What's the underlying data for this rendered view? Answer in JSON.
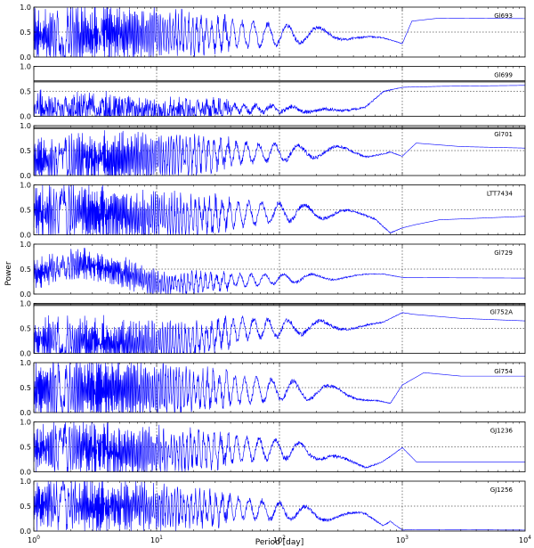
{
  "chart_data": {
    "type": "line",
    "xlabel": "Period [day]",
    "ylabel": "Power",
    "xscale": "log",
    "xlim": [
      1,
      10000
    ],
    "ylim": [
      0,
      1
    ],
    "grid": true,
    "line_color": "#0000ff",
    "threshold_color": "#555555",
    "x_tick_labels": [
      "10^0",
      "10^1",
      "10^2",
      "10^3",
      "10^4"
    ],
    "y_tick_labels": [
      "0.0",
      "0.5",
      "1.0"
    ],
    "panels": [
      {
        "name": "Gl693",
        "threshold": null,
        "control": [
          [
            1,
            0.45
          ],
          [
            10,
            0.45
          ],
          [
            30,
            0.45
          ],
          [
            60,
            0.45
          ],
          [
            100,
            0.45
          ],
          [
            200,
            0.45
          ],
          [
            400,
            0.45
          ],
          [
            700,
            0.35
          ],
          [
            1000,
            0.25
          ],
          [
            1200,
            0.72
          ],
          [
            2000,
            0.78
          ],
          [
            10000,
            0.77
          ]
        ],
        "noise": 0.5,
        "amp": 0.42
      },
      {
        "name": "Gl699",
        "threshold": 0.7,
        "control": [
          [
            1,
            0.2
          ],
          [
            3,
            0.15
          ],
          [
            10,
            0.1
          ],
          [
            30,
            0.15
          ],
          [
            100,
            0.15
          ],
          [
            200,
            0.12
          ],
          [
            300,
            0.1
          ],
          [
            500,
            0.2
          ],
          [
            700,
            0.5
          ],
          [
            1000,
            0.58
          ],
          [
            2000,
            0.6
          ],
          [
            10000,
            0.62
          ]
        ],
        "noise": 0.5,
        "amp": 0.12
      },
      {
        "name": "Gl701",
        "threshold": 0.95,
        "control": [
          [
            1,
            0.3
          ],
          [
            3,
            0.3
          ],
          [
            10,
            0.35
          ],
          [
            30,
            0.45
          ],
          [
            100,
            0.45
          ],
          [
            300,
            0.5
          ],
          [
            500,
            0.4
          ],
          [
            800,
            0.5
          ],
          [
            1000,
            0.4
          ],
          [
            1300,
            0.65
          ],
          [
            3000,
            0.58
          ],
          [
            10000,
            0.55
          ]
        ],
        "noise": 0.5,
        "amp": 0.35
      },
      {
        "name": "LTT7434",
        "threshold": null,
        "control": [
          [
            1,
            0.45
          ],
          [
            3,
            0.4
          ],
          [
            10,
            0.35
          ],
          [
            30,
            0.4
          ],
          [
            100,
            0.45
          ],
          [
            300,
            0.45
          ],
          [
            600,
            0.3
          ],
          [
            800,
            0.05
          ],
          [
            1000,
            0.15
          ],
          [
            2000,
            0.3
          ],
          [
            10000,
            0.37
          ]
        ],
        "noise": 0.5,
        "amp": 0.4
      },
      {
        "name": "Gl729",
        "threshold": null,
        "control": [
          [
            1,
            0.4
          ],
          [
            2,
            0.6
          ],
          [
            3,
            0.6
          ],
          [
            5,
            0.45
          ],
          [
            10,
            0.2
          ],
          [
            30,
            0.25
          ],
          [
            100,
            0.3
          ],
          [
            300,
            0.35
          ],
          [
            700,
            0.38
          ],
          [
            1000,
            0.33
          ],
          [
            10000,
            0.32
          ]
        ],
        "noise": 0.3,
        "amp": 0.2
      },
      {
        "name": "Gl752A",
        "threshold": 0.97,
        "control": [
          [
            1,
            0.25
          ],
          [
            5,
            0.15
          ],
          [
            20,
            0.25
          ],
          [
            50,
            0.5
          ],
          [
            100,
            0.5
          ],
          [
            300,
            0.55
          ],
          [
            700,
            0.6
          ],
          [
            1000,
            0.8
          ],
          [
            3000,
            0.7
          ],
          [
            10000,
            0.65
          ]
        ],
        "noise": 0.5,
        "amp": 0.35
      },
      {
        "name": "Gl754",
        "threshold": null,
        "control": [
          [
            1,
            0.45
          ],
          [
            10,
            0.45
          ],
          [
            50,
            0.45
          ],
          [
            100,
            0.45
          ],
          [
            300,
            0.4
          ],
          [
            600,
            0.3
          ],
          [
            800,
            0.2
          ],
          [
            1000,
            0.55
          ],
          [
            1500,
            0.8
          ],
          [
            3000,
            0.73
          ],
          [
            10000,
            0.73
          ]
        ],
        "noise": 0.5,
        "amp": 0.45
      },
      {
        "name": "GJ1236",
        "threshold": null,
        "control": [
          [
            1,
            0.45
          ],
          [
            10,
            0.4
          ],
          [
            50,
            0.45
          ],
          [
            100,
            0.45
          ],
          [
            200,
            0.4
          ],
          [
            300,
            0.2
          ],
          [
            500,
            0.1
          ],
          [
            700,
            0.25
          ],
          [
            1000,
            0.5
          ],
          [
            1300,
            0.2
          ],
          [
            10000,
            0.2
          ]
        ],
        "noise": 0.5,
        "amp": 0.4
      },
      {
        "name": "GJ1256",
        "threshold": null,
        "control": [
          [
            1,
            0.55
          ],
          [
            5,
            0.5
          ],
          [
            20,
            0.45
          ],
          [
            50,
            0.45
          ],
          [
            100,
            0.4
          ],
          [
            300,
            0.3
          ],
          [
            500,
            0.3
          ],
          [
            700,
            0.1
          ],
          [
            800,
            0.2
          ],
          [
            1000,
            0.03
          ],
          [
            10000,
            0.02
          ]
        ],
        "noise": 0.5,
        "amp": 0.35
      }
    ]
  }
}
